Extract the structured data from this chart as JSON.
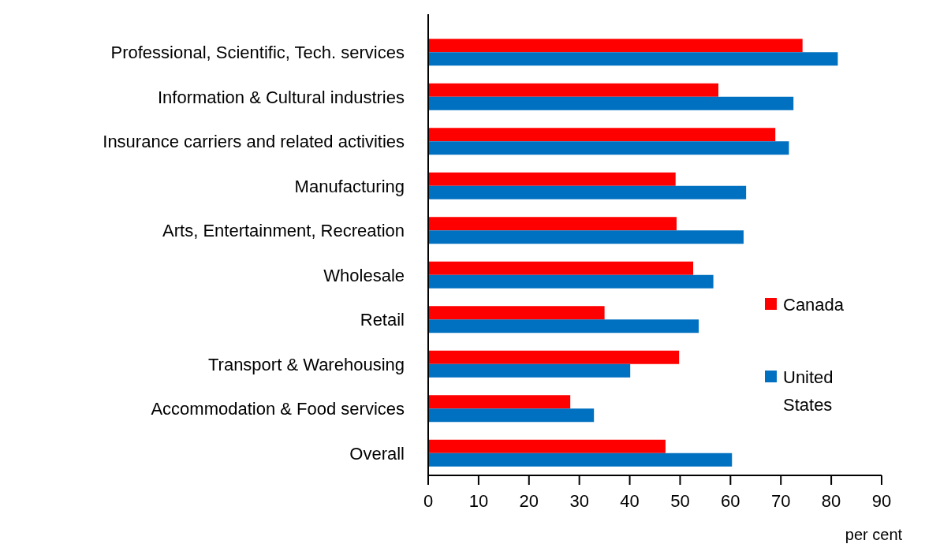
{
  "chart_data": {
    "type": "bar",
    "orientation": "horizontal",
    "xlabel": "per cent",
    "categories": [
      "Professional, Scientific, Tech. services",
      "Information & Cultural industries",
      "Insurance carriers and related activities",
      "Manufacturing",
      "Arts, Entertainment, Recreation",
      "Wholesale",
      "Retail",
      "Transport & Warehousing",
      "Accommodation & Food services",
      "Overall"
    ],
    "series": [
      {
        "name": "Canada",
        "color": "#ff0000",
        "values": [
          74.3,
          57.6,
          68.9,
          49.1,
          49.3,
          52.6,
          35,
          49.8,
          28.2,
          47.1
        ]
      },
      {
        "name": "United States",
        "color": "#0070c0",
        "values": [
          81.3,
          72.5,
          71.6,
          63.1,
          62.6,
          56.6,
          53.7,
          40.1,
          32.9,
          60.3
        ]
      }
    ],
    "xlim": [
      0,
      90
    ],
    "xticks": [
      0,
      10,
      20,
      30,
      40,
      50,
      60,
      70,
      80,
      90
    ],
    "grid": false,
    "legend": "right"
  }
}
